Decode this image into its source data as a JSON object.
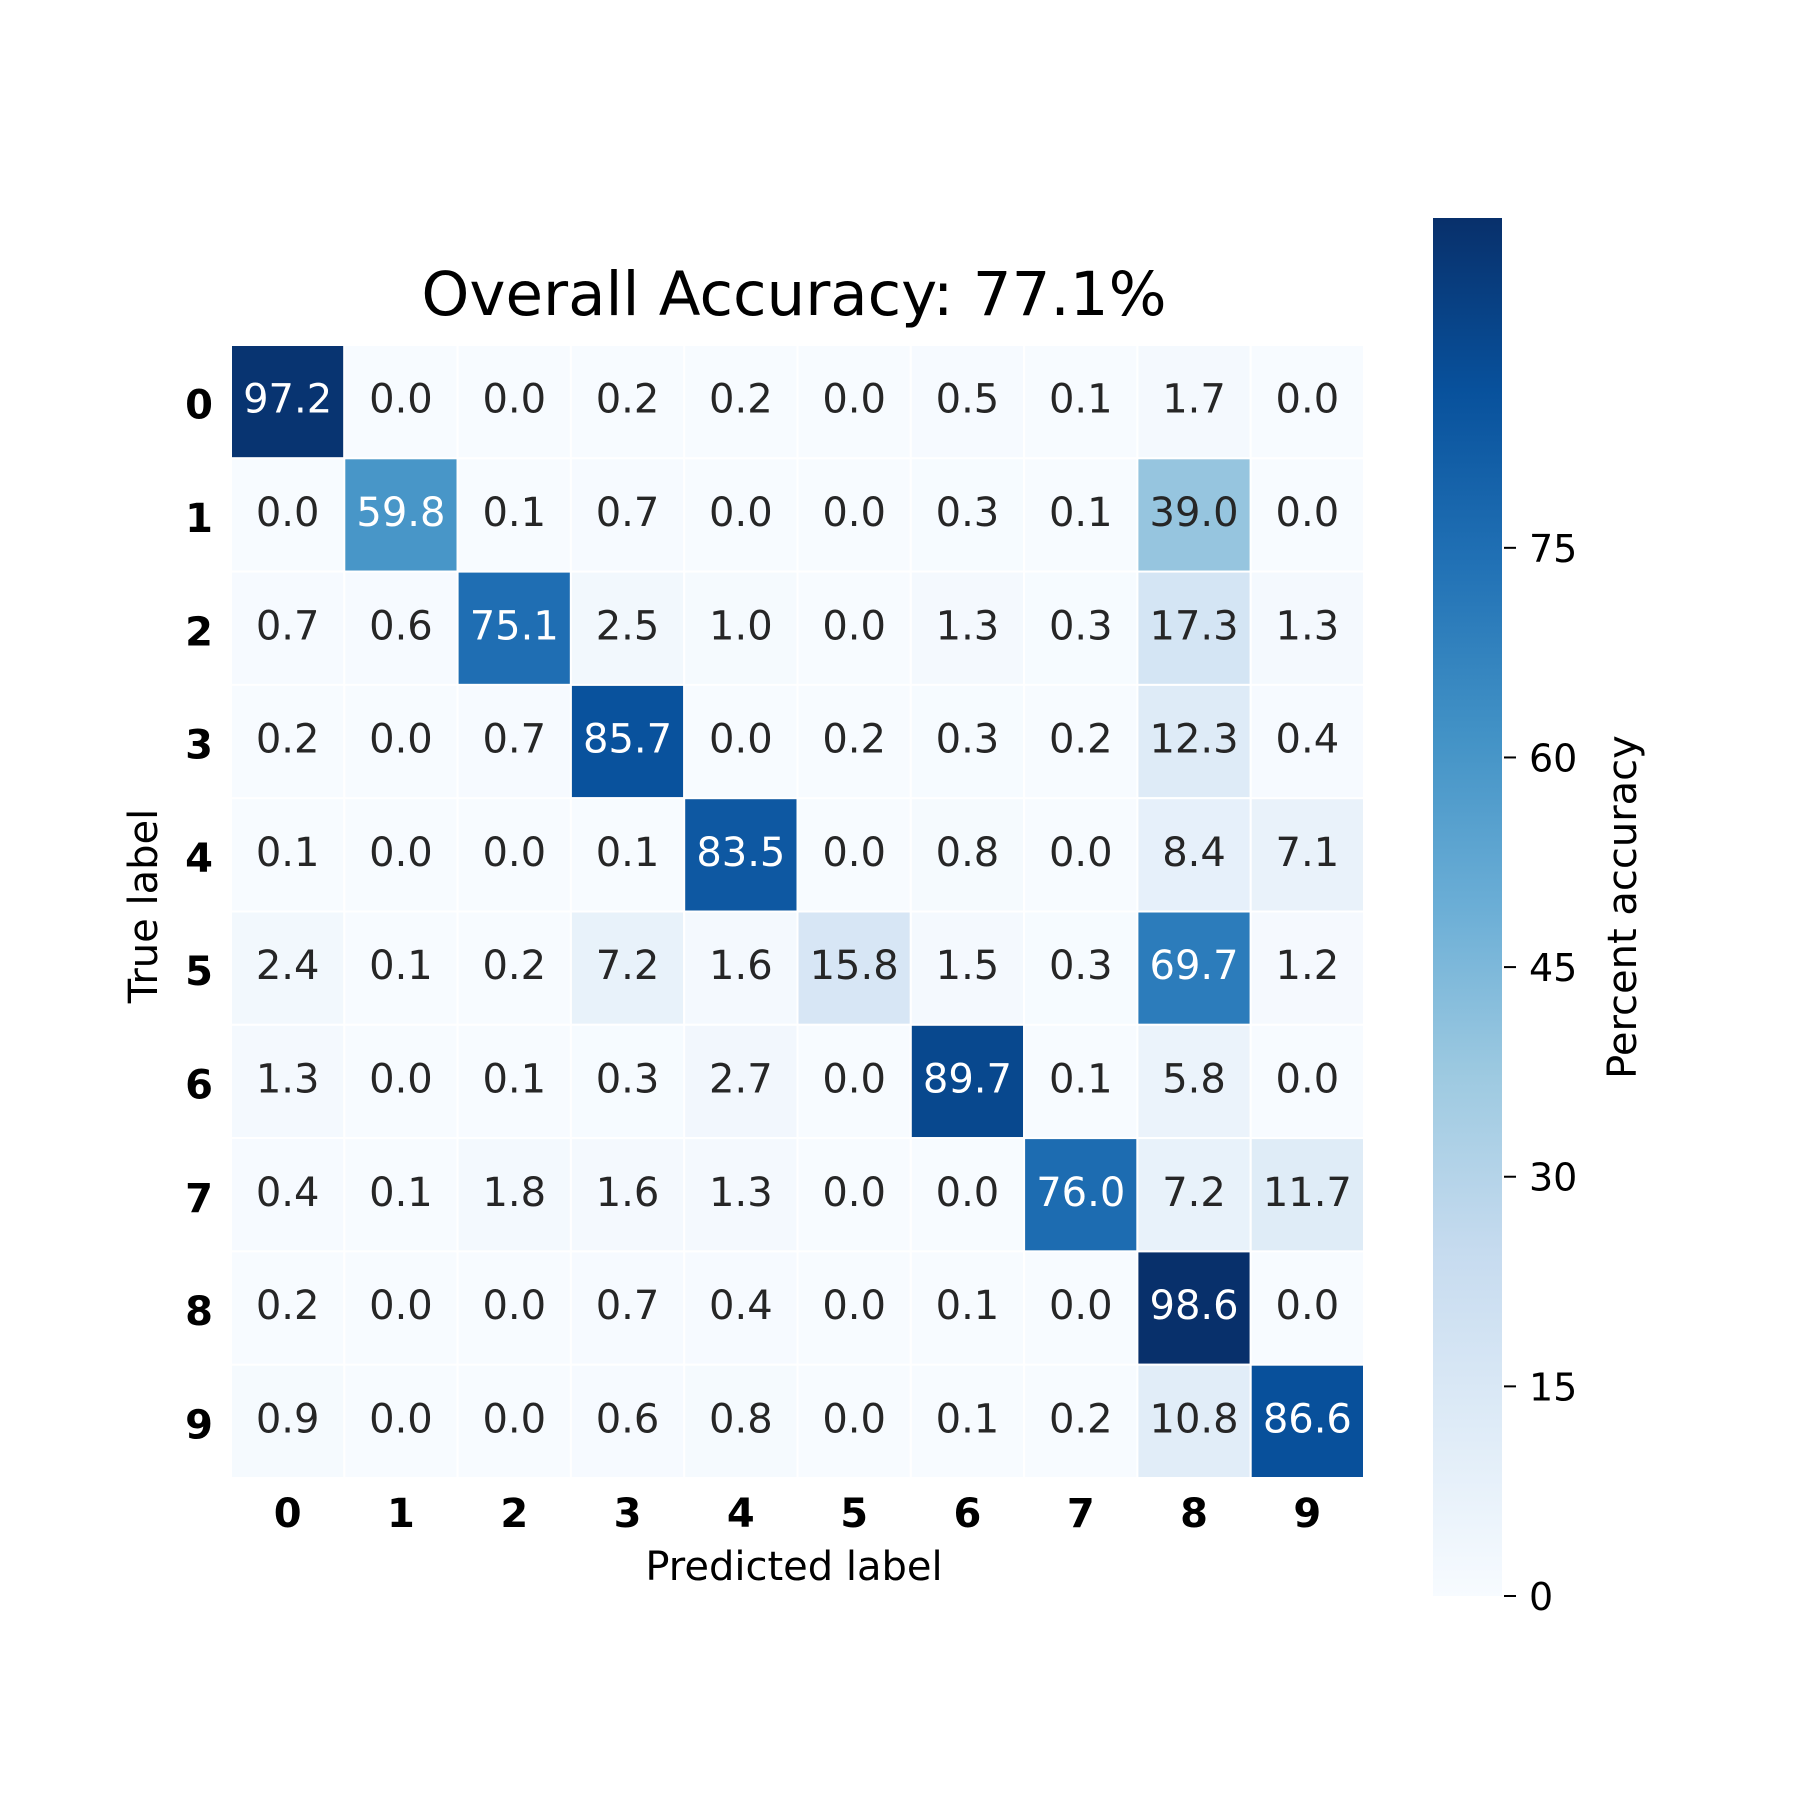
{
  "chart_data": {
    "type": "heatmap",
    "title": "Overall Accuracy: 77.1%",
    "xlabel": "Predicted label",
    "ylabel": "True label",
    "x_categories": [
      "0",
      "1",
      "2",
      "3",
      "4",
      "5",
      "6",
      "7",
      "8",
      "9"
    ],
    "y_categories": [
      "0",
      "1",
      "2",
      "3",
      "4",
      "5",
      "6",
      "7",
      "8",
      "9"
    ],
    "values": [
      [
        97.2,
        0.0,
        0.0,
        0.2,
        0.2,
        0.0,
        0.5,
        0.1,
        1.7,
        0.0
      ],
      [
        0.0,
        59.8,
        0.1,
        0.7,
        0.0,
        0.0,
        0.3,
        0.1,
        39.0,
        0.0
      ],
      [
        0.7,
        0.6,
        75.1,
        2.5,
        1.0,
        0.0,
        1.3,
        0.3,
        17.3,
        1.3
      ],
      [
        0.2,
        0.0,
        0.7,
        85.7,
        0.0,
        0.2,
        0.3,
        0.2,
        12.3,
        0.4
      ],
      [
        0.1,
        0.0,
        0.0,
        0.1,
        83.5,
        0.0,
        0.8,
        0.0,
        8.4,
        7.1
      ],
      [
        2.4,
        0.1,
        0.2,
        7.2,
        1.6,
        15.8,
        1.5,
        0.3,
        69.7,
        1.2
      ],
      [
        1.3,
        0.0,
        0.1,
        0.3,
        2.7,
        0.0,
        89.7,
        0.1,
        5.8,
        0.0
      ],
      [
        0.4,
        0.1,
        1.8,
        1.6,
        1.3,
        0.0,
        0.0,
        76.0,
        7.2,
        11.7
      ],
      [
        0.2,
        0.0,
        0.0,
        0.7,
        0.4,
        0.0,
        0.1,
        0.0,
        98.6,
        0.0
      ],
      [
        0.9,
        0.0,
        0.0,
        0.6,
        0.8,
        0.0,
        0.1,
        0.2,
        10.8,
        86.6
      ]
    ],
    "colorbar": {
      "label": "Percent accuracy",
      "min": 0,
      "max": 98.6,
      "ticks": [
        0,
        15,
        30,
        45,
        60,
        75
      ]
    },
    "colormap": "Blues"
  }
}
